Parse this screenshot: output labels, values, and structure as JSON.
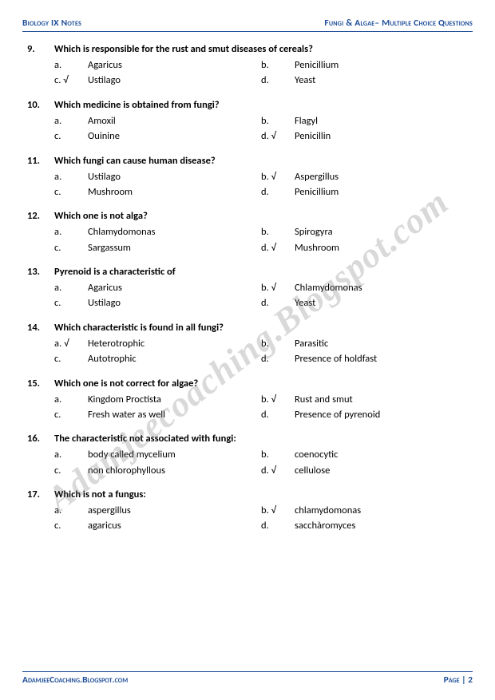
{
  "header": {
    "left": "Biology IX Notes",
    "right": "Fungi & Algae– Multiple Choice Questions"
  },
  "footer": {
    "left": "AdamjeeCoaching.Blogspot.com",
    "right": "Page | 2"
  },
  "watermark": "Adamjeecoaching.Blogspot.com",
  "questions": [
    {
      "num": "9.",
      "text": "Which is responsible for the rust and smut diseases of cereals?",
      "opts": [
        {
          "l": "a.",
          "t": "Agaricus"
        },
        {
          "l": "b.",
          "t": "Penicillium"
        },
        {
          "l": "c. √",
          "t": "Ustilago"
        },
        {
          "l": "d.",
          "t": "Yeast"
        }
      ]
    },
    {
      "num": "10.",
      "text": "Which medicine is obtained from fungi?",
      "opts": [
        {
          "l": "a.",
          "t": "Amoxil"
        },
        {
          "l": "b.",
          "t": "Flagyl"
        },
        {
          "l": "c.",
          "t": "Ouinine"
        },
        {
          "l": "d. √",
          "t": "Penicillin"
        }
      ]
    },
    {
      "num": "11.",
      "text": "Which fungi can cause human disease?",
      "opts": [
        {
          "l": "a.",
          "t": "Ustilago"
        },
        {
          "l": "b. √",
          "t": "Aspergillus"
        },
        {
          "l": "c.",
          "t": "Mushroom"
        },
        {
          "l": "d.",
          "t": "Penicillium"
        }
      ]
    },
    {
      "num": "12.",
      "text": "Which one is not alga?",
      "opts": [
        {
          "l": "a.",
          "t": "Chlamydomonas"
        },
        {
          "l": "b.",
          "t": "Spirogyra"
        },
        {
          "l": "c.",
          "t": "Sargassum"
        },
        {
          "l": "d. √",
          "t": "Mushroom"
        }
      ]
    },
    {
      "num": "13.",
      "text": "Pyrenoid is a characteristic of",
      "opts": [
        {
          "l": "a.",
          "t": "Agaricus"
        },
        {
          "l": "b. √",
          "t": "Chlamydomonas"
        },
        {
          "l": "c.",
          "t": "Ustilago"
        },
        {
          "l": "d.",
          "t": "Yeast"
        }
      ]
    },
    {
      "num": "14.",
      "text": "Which characteristic is found in all fungi?",
      "opts": [
        {
          "l": "a. √",
          "t": "Heterotrophic"
        },
        {
          "l": "b.",
          "t": "Parasitic"
        },
        {
          "l": "c.",
          "t": "Autotrophic"
        },
        {
          "l": "d.",
          "t": "Presence of holdfast"
        }
      ]
    },
    {
      "num": "15.",
      "text": "Which one is not correct for algae?",
      "opts": [
        {
          "l": "a.",
          "t": "Kingdom Proctista"
        },
        {
          "l": "b. √",
          "t": "Rust and smut"
        },
        {
          "l": "c.",
          "t": "Fresh water as well"
        },
        {
          "l": "d.",
          "t": "Presence of pyrenoid"
        }
      ]
    },
    {
      "num": "16.",
      "text": "The characteristic not associated with fungi:",
      "opts": [
        {
          "l": "a.",
          "t": "body called mycelium"
        },
        {
          "l": "b.",
          "t": "coenocytic"
        },
        {
          "l": "c.",
          "t": "non chlorophyllous"
        },
        {
          "l": "d. √",
          "t": "cellulose"
        }
      ]
    },
    {
      "num": "17.",
      "text": "Which is not a fungus:",
      "opts": [
        {
          "l": "a.",
          "t": "aspergillus"
        },
        {
          "l": "b. √",
          "t": "chlamydomonas"
        },
        {
          "l": "c.",
          "t": "agaricus"
        },
        {
          "l": "d.",
          "t": "sacchàromyces"
        }
      ]
    }
  ]
}
